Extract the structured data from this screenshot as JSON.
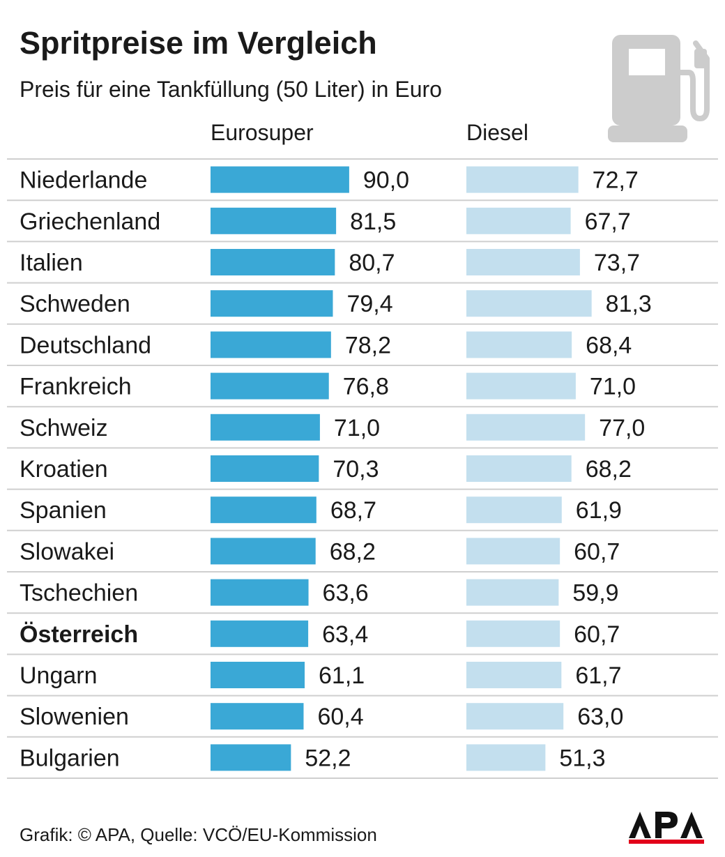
{
  "header": {
    "title": "Spritpreise im Vergleich",
    "subtitle": "Preis für eine Tankfüllung (50 Liter) in Euro"
  },
  "icons": {
    "pump": "fuel-pump-icon",
    "logo": "apa-logo"
  },
  "colors": {
    "super": "#3aa8d6",
    "diesel": "#c3dfee",
    "rule": "#cfcfcf",
    "icon": "#cccccc"
  },
  "chart_data": {
    "type": "bar",
    "orientation": "horizontal",
    "categories": [
      "Niederlande",
      "Griechenland",
      "Italien",
      "Schweden",
      "Deutschland",
      "Frankreich",
      "Schweiz",
      "Kroatien",
      "Spanien",
      "Slowakei",
      "Tschechien",
      "Österreich",
      "Ungarn",
      "Slowenien",
      "Bulgarien"
    ],
    "highlight": "Österreich",
    "series": [
      {
        "name": "Eurosuper",
        "values": [
          90.0,
          81.5,
          80.7,
          79.4,
          78.2,
          76.8,
          71.0,
          70.3,
          68.7,
          68.2,
          63.6,
          63.4,
          61.1,
          60.4,
          52.2
        ]
      },
      {
        "name": "Diesel",
        "values": [
          72.7,
          67.7,
          73.7,
          81.3,
          68.4,
          71.0,
          77.0,
          68.2,
          61.9,
          60.7,
          59.9,
          60.7,
          61.7,
          63.0,
          51.3
        ]
      }
    ],
    "value_labels": [
      [
        "90,0",
        "81,5",
        "80,7",
        "79,4",
        "78,2",
        "76,8",
        "71,0",
        "70,3",
        "68,7",
        "68,2",
        "63,6",
        "63,4",
        "61,1",
        "60,4",
        "52,2"
      ],
      [
        "72,7",
        "67,7",
        "73,7",
        "81,3",
        "68,4",
        "71,0",
        "77,0",
        "68,2",
        "61,9",
        "60,7",
        "59,9",
        "60,7",
        "61,7",
        "63,0",
        "51,3"
      ]
    ],
    "grid": "horizontal row rules",
    "legend": "column headers"
  },
  "footer": {
    "credit": "Grafik: © APA, Quelle: VCÖ/EU-Kommission",
    "logo_text": "APA"
  }
}
